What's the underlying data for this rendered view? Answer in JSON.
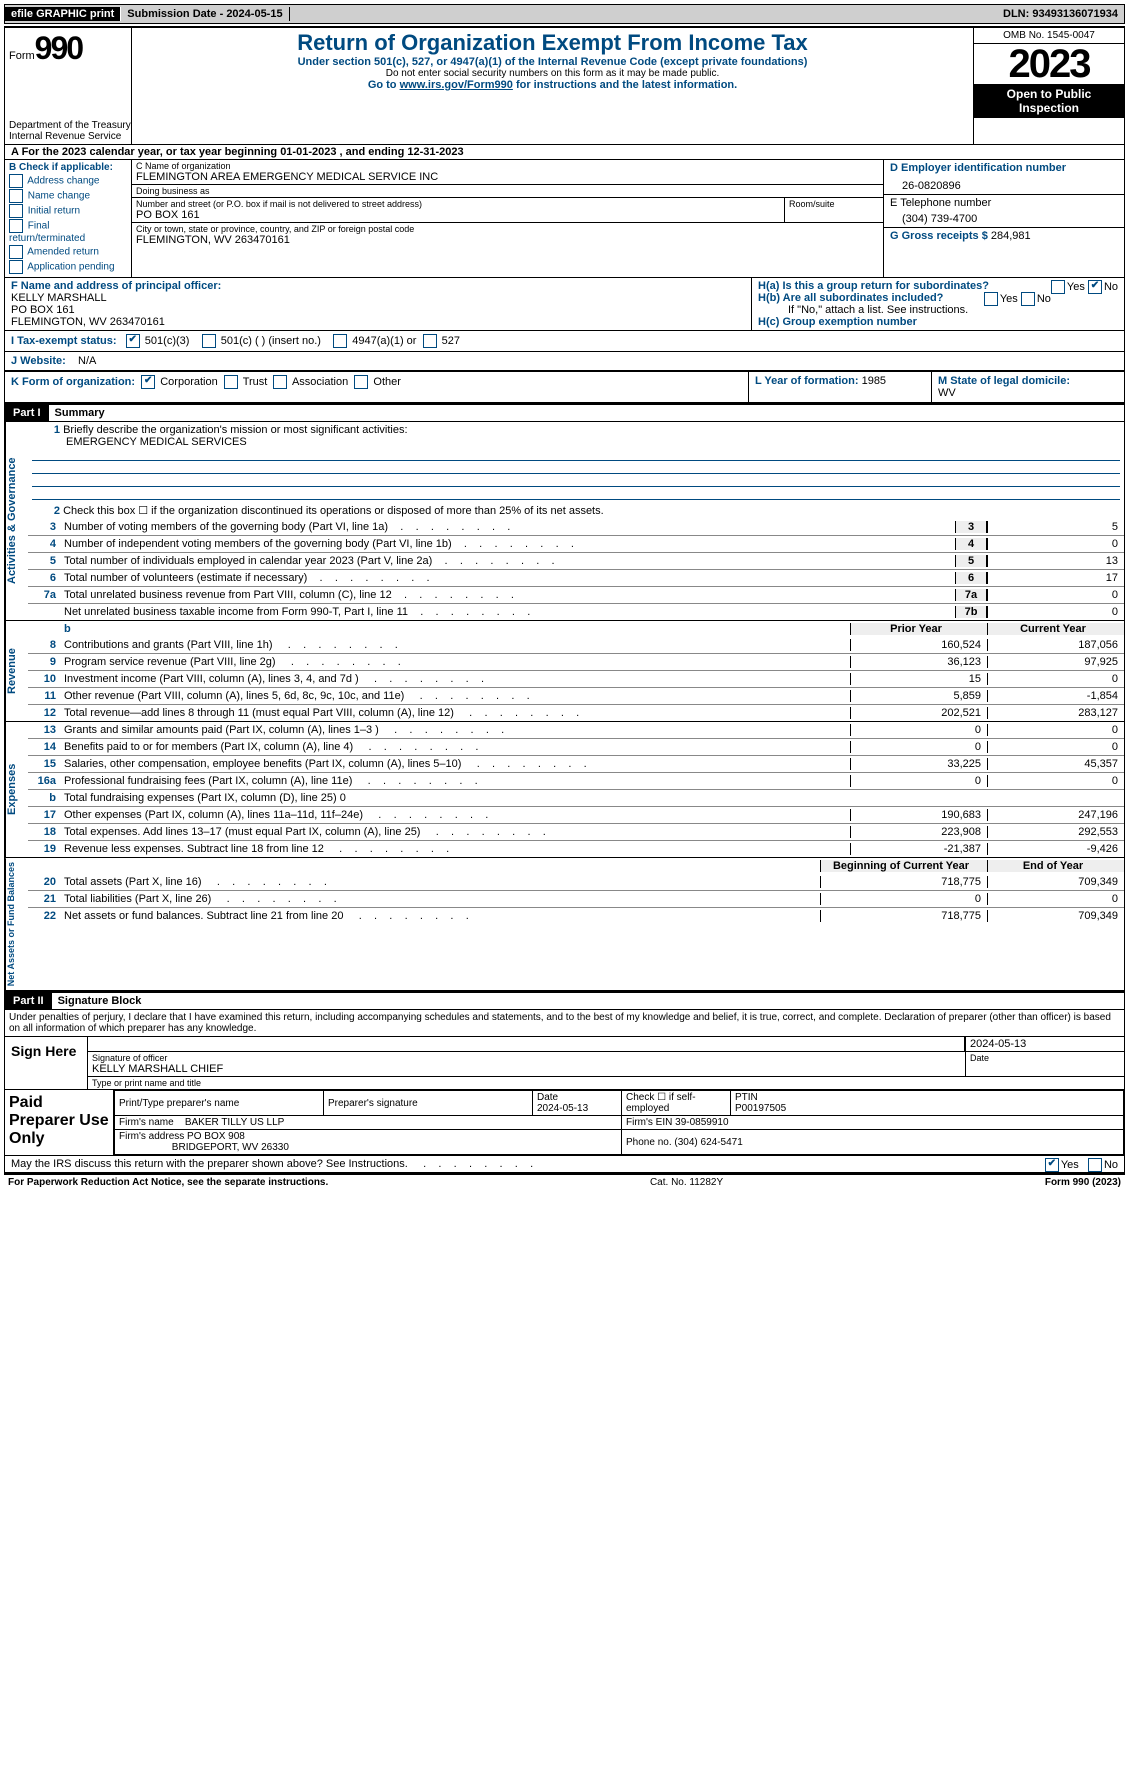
{
  "topbar": {
    "efile": "efile GRAPHIC print",
    "submission": "Submission Date - 2024-05-15",
    "dln": "DLN: 93493136071934"
  },
  "header": {
    "form_word": "Form",
    "form_num": "990",
    "dept": "Department of the Treasury Internal Revenue Service",
    "title": "Return of Organization Exempt From Income Tax",
    "sub1": "Under section 501(c), 527, or 4947(a)(1) of the Internal Revenue Code (except private foundations)",
    "sub2": "Do not enter social security numbers on this form as it may be made public.",
    "sub3_pre": "Go to ",
    "sub3_link": "www.irs.gov/Form990",
    "sub3_post": " for instructions and the latest information.",
    "omb": "OMB No. 1545-0047",
    "year": "2023",
    "open": "Open to Public Inspection"
  },
  "rowA": "A   For the 2023 calendar year, or tax year beginning 01-01-2023    , and ending 12-31-2023",
  "B": {
    "head": "B Check if applicable:",
    "items": [
      "Address change",
      "Name change",
      "Initial return",
      "Final return/terminated",
      "Amended return",
      "Application pending"
    ]
  },
  "C": {
    "name_lbl": "C Name of organization",
    "name": "FLEMINGTON AREA EMERGENCY MEDICAL SERVICE INC",
    "dba_lbl": "Doing business as",
    "dba": "",
    "addr_lbl": "Number and street (or P.O. box if mail is not delivered to street address)",
    "room_lbl": "Room/suite",
    "addr": "PO BOX 161",
    "city_lbl": "City or town, state or province, country, and ZIP or foreign postal code",
    "city": "FLEMINGTON, WV  263470161"
  },
  "D": {
    "lbl": "D Employer identification number",
    "val": "26-0820896"
  },
  "E": {
    "lbl": "E Telephone number",
    "val": "(304) 739-4700"
  },
  "G": {
    "lbl": "G Gross receipts $",
    "val": "284,981"
  },
  "F": {
    "lbl": "F  Name and address of principal officer:",
    "name": "KELLY MARSHALL",
    "addr": "PO BOX 161",
    "city": "FLEMINGTON, WV  263470161"
  },
  "H": {
    "a": "H(a)  Is this a group return for subordinates?",
    "a_no": "No",
    "a_yes": "Yes",
    "b": "H(b)  Are all subordinates included?",
    "b_note": "If \"No,\" attach a list. See instructions.",
    "c": "H(c)  Group exemption number"
  },
  "I": {
    "lbl": "I   Tax-exempt status:",
    "opt1": "501(c)(3)",
    "opt2": "501(c) (  ) (insert no.)",
    "opt3": "4947(a)(1) or",
    "opt4": "527"
  },
  "J": {
    "lbl": "J   Website:",
    "val": "N/A"
  },
  "K": {
    "lbl": "K Form of organization:",
    "opts": [
      "Corporation",
      "Trust",
      "Association",
      "Other"
    ]
  },
  "L": {
    "lbl": "L Year of formation:",
    "val": "1985"
  },
  "M": {
    "lbl": "M State of legal domicile:",
    "val": "WV"
  },
  "part1": {
    "hdr": "Part I",
    "ttl": "Summary"
  },
  "s1": {
    "l1": "Briefly describe the organization's mission or most significant activities:",
    "mission": "EMERGENCY MEDICAL SERVICES",
    "l2": "Check this box ☐ if the organization discontinued its operations or disposed of more than 25% of its net assets.",
    "rows_gov": [
      {
        "n": "3",
        "d": "Number of voting members of the governing body (Part VI, line 1a)",
        "b": "3",
        "v": "5"
      },
      {
        "n": "4",
        "d": "Number of independent voting members of the governing body (Part VI, line 1b)",
        "b": "4",
        "v": "0"
      },
      {
        "n": "5",
        "d": "Total number of individuals employed in calendar year 2023 (Part V, line 2a)",
        "b": "5",
        "v": "13"
      },
      {
        "n": "6",
        "d": "Total number of volunteers (estimate if necessary)",
        "b": "6",
        "v": "17"
      },
      {
        "n": "7a",
        "d": "Total unrelated business revenue from Part VIII, column (C), line 12",
        "b": "7a",
        "v": "0"
      },
      {
        "n": "",
        "d": "Net unrelated business taxable income from Form 990-T, Part I, line 11",
        "b": "7b",
        "v": "0"
      }
    ],
    "rev_hdr_py": "Prior Year",
    "rev_hdr_cy": "Current Year",
    "rows_rev": [
      {
        "n": "8",
        "d": "Contributions and grants (Part VIII, line 1h)",
        "py": "160,524",
        "cy": "187,056"
      },
      {
        "n": "9",
        "d": "Program service revenue (Part VIII, line 2g)",
        "py": "36,123",
        "cy": "97,925"
      },
      {
        "n": "10",
        "d": "Investment income (Part VIII, column (A), lines 3, 4, and 7d )",
        "py": "15",
        "cy": "0"
      },
      {
        "n": "11",
        "d": "Other revenue (Part VIII, column (A), lines 5, 6d, 8c, 9c, 10c, and 11e)",
        "py": "5,859",
        "cy": "-1,854"
      },
      {
        "n": "12",
        "d": "Total revenue—add lines 8 through 11 (must equal Part VIII, column (A), line 12)",
        "py": "202,521",
        "cy": "283,127"
      }
    ],
    "rows_exp": [
      {
        "n": "13",
        "d": "Grants and similar amounts paid (Part IX, column (A), lines 1–3 )",
        "py": "0",
        "cy": "0"
      },
      {
        "n": "14",
        "d": "Benefits paid to or for members (Part IX, column (A), line 4)",
        "py": "0",
        "cy": "0"
      },
      {
        "n": "15",
        "d": "Salaries, other compensation, employee benefits (Part IX, column (A), lines 5–10)",
        "py": "33,225",
        "cy": "45,357"
      },
      {
        "n": "16a",
        "d": "Professional fundraising fees (Part IX, column (A), line 11e)",
        "py": "0",
        "cy": "0"
      },
      {
        "n": "b",
        "d": "Total fundraising expenses (Part IX, column (D), line 25) 0",
        "py": "",
        "cy": "",
        "grey": true,
        "nobox": true
      },
      {
        "n": "17",
        "d": "Other expenses (Part IX, column (A), lines 11a–11d, 11f–24e)",
        "py": "190,683",
        "cy": "247,196"
      },
      {
        "n": "18",
        "d": "Total expenses. Add lines 13–17 (must equal Part IX, column (A), line 25)",
        "py": "223,908",
        "cy": "292,553"
      },
      {
        "n": "19",
        "d": "Revenue less expenses. Subtract line 18 from line 12",
        "py": "-21,387",
        "cy": "-9,426"
      }
    ],
    "net_hdr_b": "Beginning of Current Year",
    "net_hdr_e": "End of Year",
    "rows_net": [
      {
        "n": "20",
        "d": "Total assets (Part X, line 16)",
        "py": "718,775",
        "cy": "709,349"
      },
      {
        "n": "21",
        "d": "Total liabilities (Part X, line 26)",
        "py": "0",
        "cy": "0"
      },
      {
        "n": "22",
        "d": "Net assets or fund balances. Subtract line 21 from line 20",
        "py": "718,775",
        "cy": "709,349"
      }
    ]
  },
  "vlabels": {
    "gov": "Activities & Governance",
    "rev": "Revenue",
    "exp": "Expenses",
    "net": "Net Assets or Fund Balances"
  },
  "part2": {
    "hdr": "Part II",
    "ttl": "Signature Block"
  },
  "penalty": "Under penalties of perjury, I declare that I have examined this return, including accompanying schedules and statements, and to the best of my knowledge and belief, it is true, correct, and complete. Declaration of preparer (other than officer) is based on all information of which preparer has any knowledge.",
  "sign": {
    "here": "Sign Here",
    "sig_lbl": "Signature of officer",
    "date_lbl": "Date",
    "date": "2024-05-13",
    "name": "KELLY MARSHALL CHIEF",
    "type_lbl": "Type or print name and title"
  },
  "prep": {
    "here": "Paid Preparer Use Only",
    "name_lbl": "Print/Type preparer's name",
    "sig_lbl": "Preparer's signature",
    "date_lbl": "Date",
    "date": "2024-05-13",
    "check_lbl": "Check ☐ if self-employed",
    "ptin_lbl": "PTIN",
    "ptin": "P00197505",
    "firm_lbl": "Firm's name",
    "firm": "BAKER TILLY US LLP",
    "ein_lbl": "Firm's EIN",
    "ein": "39-0859910",
    "addr_lbl": "Firm's address",
    "addr": "PO BOX 908",
    "city": "BRIDGEPORT, WV  26330",
    "phone_lbl": "Phone no.",
    "phone": "(304) 624-5471"
  },
  "discuss": "May the IRS discuss this return with the preparer shown above? See Instructions.",
  "discuss_yes": "Yes",
  "discuss_no": "No",
  "footer": {
    "l": "For Paperwork Reduction Act Notice, see the separate instructions.",
    "m": "Cat. No. 11282Y",
    "r": "Form 990 (2023)"
  }
}
